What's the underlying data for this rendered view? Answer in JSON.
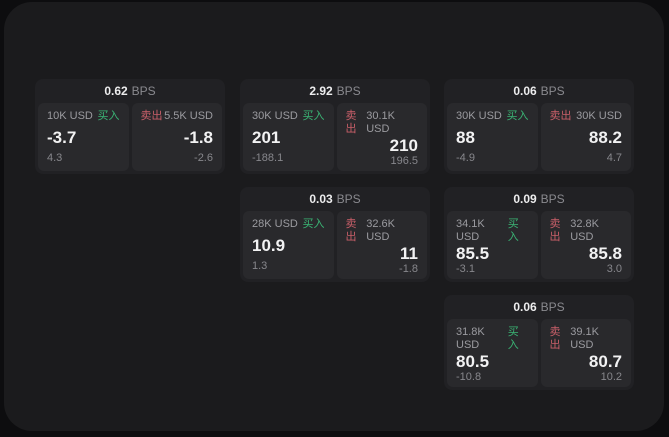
{
  "labels": {
    "buy": "买入",
    "sell": "卖出",
    "bps": "BPS"
  },
  "colors": {
    "accent_green": "#3ab575",
    "accent_red": "#c95f69",
    "window_bg": "#1b1b1d",
    "card_bg": "#212124",
    "panel_bg": "#29292c"
  },
  "cards": [
    {
      "bps": "0.62",
      "buy": {
        "size": "10K USD",
        "value": "-3.7",
        "sub": "4.3"
      },
      "sell": {
        "size": "5.5K USD",
        "value": "-1.8",
        "sub": "-2.6"
      }
    },
    {
      "bps": "2.92",
      "buy": {
        "size": "30K USD",
        "value": "201",
        "sub": "-188.1"
      },
      "sell": {
        "size": "30.1K USD",
        "value": "210",
        "sub": "196.5"
      }
    },
    {
      "bps": "0.06",
      "buy": {
        "size": "30K USD",
        "value": "88",
        "sub": "-4.9"
      },
      "sell": {
        "size": "30K USD",
        "value": "88.2",
        "sub": "4.7"
      }
    },
    {
      "bps": "0.03",
      "buy": {
        "size": "28K USD",
        "value": "10.9",
        "sub": "1.3"
      },
      "sell": {
        "size": "32.6K USD",
        "value": "11",
        "sub": "-1.8"
      }
    },
    {
      "bps": "0.09",
      "buy": {
        "size": "34.1K USD",
        "value": "85.5",
        "sub": "-3.1"
      },
      "sell": {
        "size": "32.8K USD",
        "value": "85.8",
        "sub": "3.0"
      }
    },
    {
      "bps": "0.06",
      "buy": {
        "size": "31.8K USD",
        "value": "80.5",
        "sub": "-10.8"
      },
      "sell": {
        "size": "39.1K USD",
        "value": "80.7",
        "sub": "10.2"
      }
    }
  ]
}
